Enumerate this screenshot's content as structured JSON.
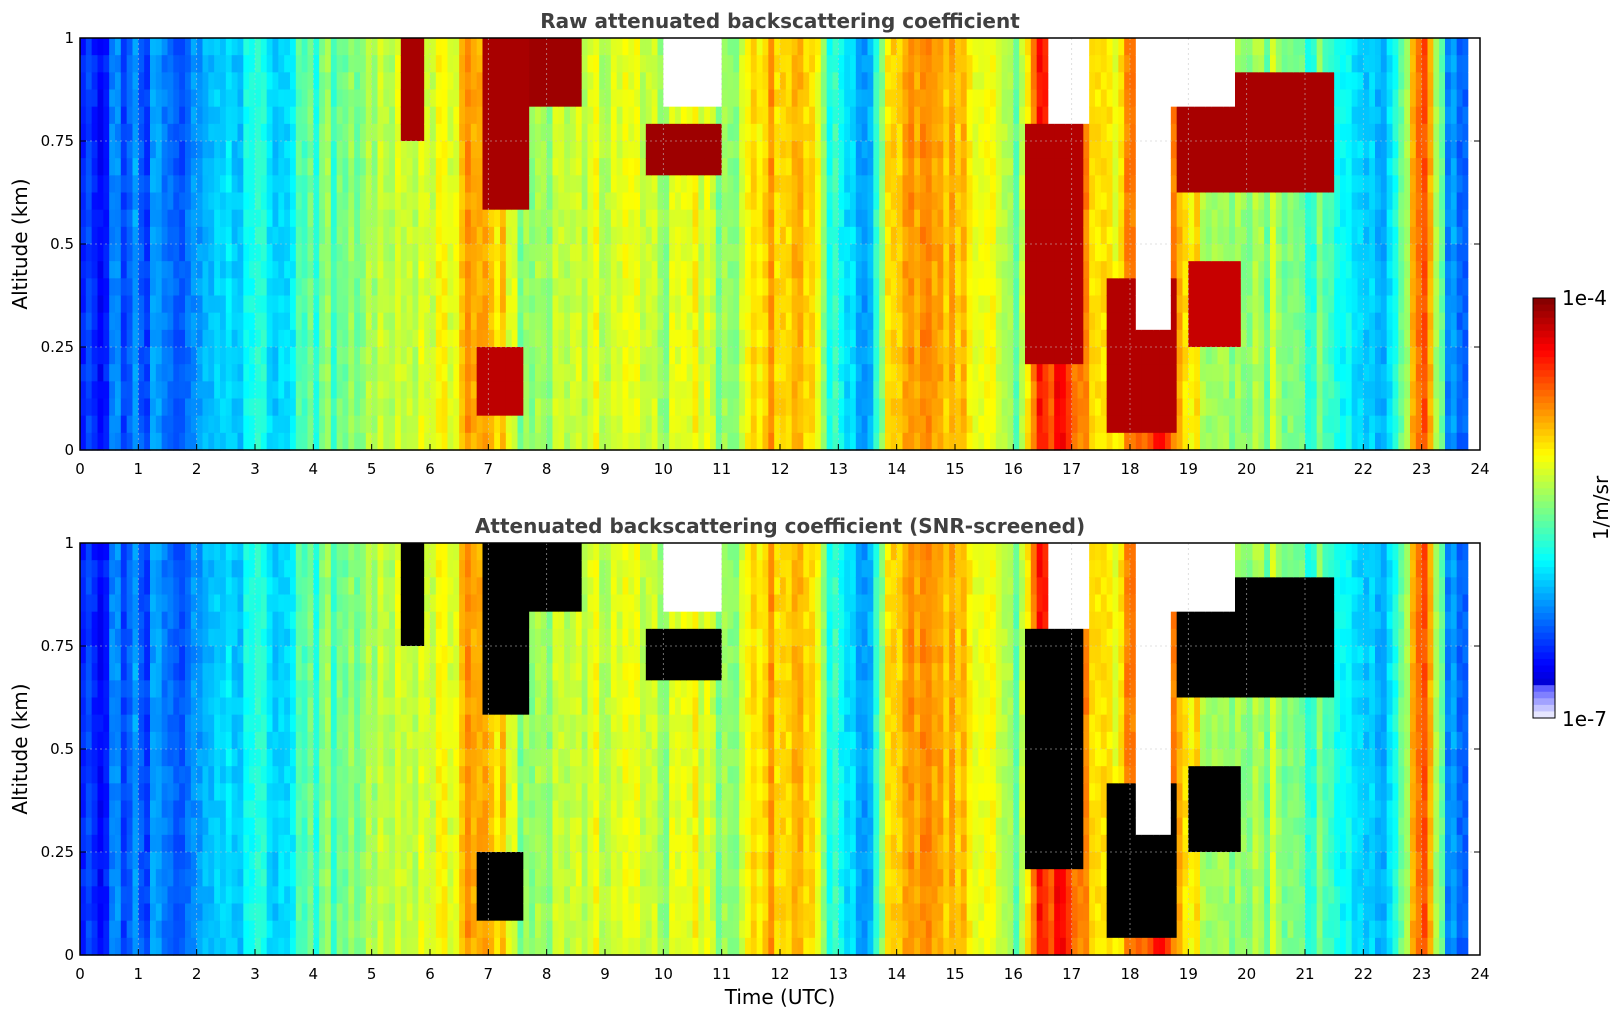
{
  "chart_data": [
    {
      "type": "heatmap",
      "title": "Raw attenuated backscattering coefficient",
      "xlabel": "",
      "ylabel": "Altitude (km)",
      "xlim": [
        0,
        24
      ],
      "ylim": [
        0,
        1
      ],
      "xticks": [
        "0",
        "1",
        "2",
        "3",
        "4",
        "5",
        "6",
        "7",
        "8",
        "9",
        "10",
        "11",
        "12",
        "13",
        "14",
        "15",
        "16",
        "17",
        "18",
        "19",
        "20",
        "21",
        "22",
        "23",
        "24"
      ],
      "yticks": [
        "0",
        "0.25",
        "0.5",
        "0.75",
        "1"
      ],
      "grid": true,
      "screened": false,
      "colormap": "jet",
      "column_profile": {
        "time_utc": [
          0,
          0.5,
          1,
          1.5,
          2,
          2.5,
          3,
          3.5,
          4,
          4.5,
          5,
          5.5,
          6,
          6.5,
          7,
          7.5,
          8,
          8.5,
          9,
          9.5,
          10,
          10.5,
          11,
          11.5,
          12,
          12.5,
          13,
          13.5,
          14,
          14.5,
          15,
          15.5,
          16,
          16.5,
          17,
          17.5,
          18,
          18.5,
          19,
          19.5,
          20,
          20.5,
          21,
          21.5,
          22,
          22.5,
          23,
          23.5
        ],
        "relative_level": [
          0.14,
          0.2,
          0.23,
          0.25,
          0.27,
          0.35,
          0.38,
          0.35,
          0.45,
          0.5,
          0.58,
          0.55,
          0.6,
          0.66,
          0.72,
          0.55,
          0.5,
          0.56,
          0.58,
          0.56,
          0.55,
          0.6,
          0.5,
          0.62,
          0.7,
          0.65,
          0.35,
          0.3,
          0.72,
          0.78,
          0.68,
          0.62,
          0.48,
          0.84,
          0.82,
          0.6,
          0.72,
          0.86,
          0.64,
          0.52,
          0.5,
          0.54,
          0.46,
          0.46,
          0.35,
          0.3,
          0.82,
          0.25
        ]
      },
      "cloud_regions": [
        {
          "time_start": 5.5,
          "time_end": 5.9,
          "alt_bottom": 0.75,
          "alt_top": 1.0,
          "level": 0.96
        },
        {
          "time_start": 6.9,
          "time_end": 7.7,
          "alt_bottom": 0.6,
          "alt_top": 1.0,
          "level": 0.96
        },
        {
          "time_start": 6.8,
          "time_end": 7.6,
          "alt_bottom": 0.1,
          "alt_top": 0.25,
          "level": 0.94
        },
        {
          "time_start": 7.5,
          "time_end": 8.6,
          "alt_bottom": 0.85,
          "alt_top": 1.0,
          "level": 0.97
        },
        {
          "time_start": 9.7,
          "time_end": 11.0,
          "alt_bottom": 0.67,
          "alt_top": 0.8,
          "level": 0.97
        },
        {
          "time_start": 16.2,
          "time_end": 17.2,
          "alt_bottom": 0.2,
          "alt_top": 0.8,
          "level": 0.95
        },
        {
          "time_start": 17.6,
          "time_end": 18.8,
          "alt_bottom": 0.05,
          "alt_top": 0.4,
          "level": 0.95
        },
        {
          "time_start": 19.0,
          "time_end": 19.9,
          "alt_bottom": 0.25,
          "alt_top": 0.45,
          "level": 0.93
        },
        {
          "time_start": 18.8,
          "time_end": 21.5,
          "alt_bottom": 0.62,
          "alt_top": 0.9,
          "level": 0.96
        }
      ],
      "empty_regions": [
        {
          "time_start": 10.0,
          "time_end": 11.0,
          "alt_bottom": 0.82,
          "alt_top": 1.0
        },
        {
          "time_start": 16.6,
          "time_end": 17.3,
          "alt_bottom": 0.8,
          "alt_top": 1.0
        },
        {
          "time_start": 18.1,
          "time_end": 18.7,
          "alt_bottom": 0.3,
          "alt_top": 1.0
        },
        {
          "time_start": 18.7,
          "time_end": 19.8,
          "alt_bottom": 0.85,
          "alt_top": 1.0
        }
      ]
    },
    {
      "type": "heatmap",
      "title": "Attenuated backscattering coefficient (SNR-screened)",
      "xlabel": "Time (UTC)",
      "ylabel": "Altitude (km)",
      "xlim": [
        0,
        24
      ],
      "ylim": [
        0,
        1
      ],
      "xticks": [
        "0",
        "1",
        "2",
        "3",
        "4",
        "5",
        "6",
        "7",
        "8",
        "9",
        "10",
        "11",
        "12",
        "13",
        "14",
        "15",
        "16",
        "17",
        "18",
        "19",
        "20",
        "21",
        "22",
        "23",
        "24"
      ],
      "yticks": [
        "0",
        "0.25",
        "0.5",
        "0.75",
        "1"
      ],
      "grid": true,
      "screened": true,
      "colormap": "jet"
    }
  ],
  "colorbar": {
    "label": "1/m/sr",
    "max_label": "1e-4",
    "min_label": "1e-7",
    "min": 1e-07,
    "max": 0.0001,
    "scale": "log"
  },
  "colors": {
    "cloud_core": "#7f0000",
    "screened": "#000000",
    "empty": "#ffffff",
    "grid": "#c8c8c8"
  }
}
